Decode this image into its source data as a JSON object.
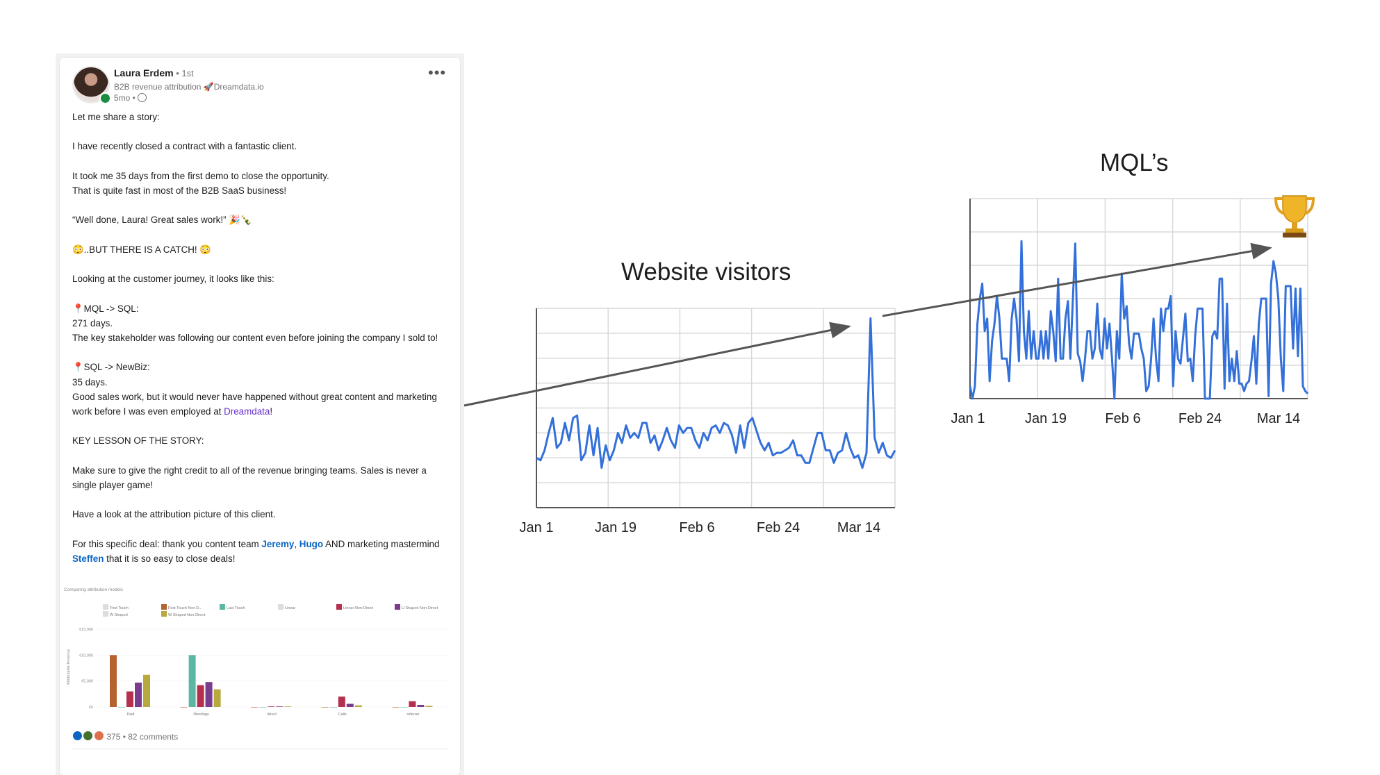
{
  "post": {
    "author": "Laura Erdem",
    "degree": " • 1st",
    "headline": "B2B revenue attribution 🚀Dreamdata.io",
    "time": "5mo • ",
    "paragraphs": {
      "p1": "Let me share a story:",
      "p2": "I have recently closed a contract with a fantastic client.",
      "p3": "It took me 35 days from the first demo to close the opportunity.\nThat is quite fast in most of the B2B SaaS business!",
      "p4": "“Well done, Laura! Great sales work!” 🎉🍾",
      "p5": "😳..BUT THERE IS A CATCH! 😳",
      "p6": "Looking at the customer journey, it looks like this:",
      "p7a": "📍MQL -> SQL:",
      "p7b": "271 days.\nThe key stakeholder was following our content even before joining the company I sold to!",
      "p8a": "📍SQL -> NewBiz:",
      "p8b": "35 days.\nGood sales work, but it would never have happened without great content and marketing work before I was even employed at ",
      "p8_company": "Dreamdata",
      "p8_end": "!",
      "p9": "KEY LESSON OF THE STORY:",
      "p10": "Make sure to give the right credit to all of the revenue bringing teams. Sales is never a single player game!",
      "p11": "Have a look at the attribution picture of this client.",
      "p12_start": "For this specific deal: thank you content team ",
      "mention1": "Jeremy",
      "sep1": ", ",
      "mention2": "Hugo",
      "p12_mid": " AND marketing mastermind ",
      "mention3": "Steffen",
      "p12_end": " that it is so easy to close deals!"
    },
    "reactions": "375 • 82 comments"
  },
  "embed_chart": {
    "title": "Comparing attribution models",
    "legend": {
      "first_touch": "First Touch",
      "w_shaped": "W Shaped",
      "first_touch_nd": "First Touch Non-D...",
      "w_shaped_nd": "W Shaped Non-Direct",
      "last_touch": "Last Touch",
      "linear": "Linear",
      "linear_nd": "Linear Non-Direct",
      "u_shaped_nd": "U Shaped Non-Direct"
    },
    "ylabel": "Attributable Revenue",
    "yticks": [
      "€15,000",
      "€10,000",
      "€5,000",
      "€0"
    ],
    "categories": [
      "Paid",
      "Meetings",
      "direct",
      "Calls",
      "referrer"
    ],
    "series_colors": [
      "#b5622e",
      "#5bb7a3",
      "#b3304f",
      "#7a3c8e",
      "#b7a93c"
    ],
    "values": [
      [
        10000,
        0,
        3000,
        4700,
        6200
      ],
      [
        0,
        10000,
        4200,
        4800,
        3400
      ],
      [
        0,
        0,
        100,
        100,
        100
      ],
      [
        0,
        0,
        2000,
        600,
        300
      ],
      [
        0,
        0,
        1100,
        400,
        200
      ]
    ],
    "colors": {
      "c1": "#b5622e",
      "c2": "#5bb7a3",
      "c3": "#b3304f",
      "c4": "#7a3c8e",
      "c5": "#b7a93c",
      "c6": "#cccccc"
    }
  },
  "chart_data": [
    {
      "type": "line",
      "title": "Website visitors",
      "xlabel": "",
      "ylabel": "",
      "x_ticks": [
        "Jan 1",
        "Jan 19",
        "Feb 6",
        "Feb 24",
        "Mar 14"
      ],
      "grid": true,
      "color": "#3370d9",
      "series": [
        {
          "values": [
            20,
            19,
            23,
            30,
            36,
            24,
            26,
            34,
            27,
            36,
            37,
            19,
            22,
            33,
            21,
            32,
            16,
            25,
            19,
            23,
            30,
            26,
            33,
            28,
            30,
            28,
            34,
            34,
            26,
            29,
            23,
            27,
            32,
            27,
            24,
            33,
            30,
            32,
            32,
            27,
            24,
            30,
            27,
            32,
            33,
            30,
            34,
            33,
            29,
            22,
            33,
            24,
            34,
            36,
            31,
            26,
            23,
            26,
            21,
            22,
            22,
            23,
            24,
            27,
            21,
            21,
            18,
            18,
            24,
            30,
            30,
            23,
            23,
            18,
            22,
            23,
            30,
            24,
            20,
            21,
            16,
            22,
            76,
            28,
            22,
            26,
            21,
            20,
            23
          ]
        }
      ],
      "ylim": [
        0,
        80
      ]
    },
    {
      "type": "line",
      "title": "MQL’s",
      "xlabel": "",
      "ylabel": "",
      "x_ticks": [
        "Jan 1",
        "Jan 19",
        "Feb 6",
        "Feb 24",
        "Mar 14"
      ],
      "grid": true,
      "color": "#3370d9",
      "series": [
        {
          "values": [
            0.5,
            0,
            0.5,
            3,
            4,
            4.6,
            2.7,
            3.2,
            0.7,
            2.3,
            3,
            4.1,
            3.2,
            1.6,
            1.6,
            1.6,
            0.7,
            3.2,
            4,
            3.2,
            1.5,
            6.3,
            2.7,
            1.6,
            3.5,
            1.6,
            2.7,
            1.6,
            1.6,
            2.7,
            1.6,
            2.7,
            1.6,
            3.5,
            2.7,
            1.5,
            4.8,
            1.6,
            1.6,
            3.2,
            3.9,
            1.6,
            3.9,
            6.2,
            1.8,
            1.5,
            0.7,
            1.6,
            2.7,
            2.7,
            1.6,
            2,
            3.8,
            2,
            1.6,
            3.2,
            2,
            3,
            1.6,
            0,
            2.7,
            1.6,
            5,
            3.2,
            3.7,
            2.2,
            1.6,
            2.6,
            2.6,
            2.6,
            2,
            1.6,
            0.3,
            0.5,
            1.6,
            3.2,
            1.6,
            0.7,
            3.6,
            2.7,
            3.6,
            3.6,
            4.1,
            0.5,
            2.7,
            1.6,
            1.4,
            2.4,
            3.4,
            1.5,
            1.6,
            0.7,
            2.5,
            3.6,
            3.6,
            3.6,
            0,
            0,
            0,
            2.5,
            2.7,
            2.4,
            4.8,
            4.8,
            0.4,
            3.8,
            0.7,
            1.6,
            0.7,
            1.9,
            0.6,
            0.6,
            0.3,
            0.6,
            0.7,
            1.5,
            2.5,
            0.6,
            3,
            4,
            4,
            4,
            0.1,
            4.6,
            5.5,
            5,
            4,
            1.6,
            0.3,
            4.5,
            4.5,
            4.5,
            2,
            4.4,
            1.7,
            4.4,
            0.5,
            0.3,
            0.2
          ],
          "note": "approximate"
        }
      ],
      "ylim": [
        0,
        8
      ]
    }
  ]
}
